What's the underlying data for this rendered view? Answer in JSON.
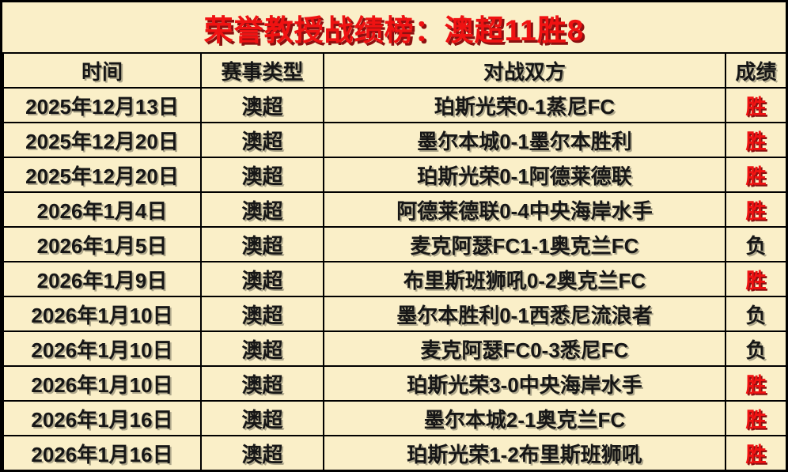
{
  "title": "荣誉教授战绩榜：澳超11胜8",
  "colors": {
    "background": "#faefc8",
    "border": "#000000",
    "accent_red": "#f01212",
    "red_shadow": "#8c1010",
    "text_black": "#161616"
  },
  "table": {
    "headers": [
      "时间",
      "赛事类型",
      "对战双方",
      "成绩"
    ],
    "rows": [
      {
        "date": "2025年12月13日",
        "league": "澳超",
        "match": "珀斯光荣0-1蒸尼FC",
        "result": "胜",
        "result_type": "win"
      },
      {
        "date": "2025年12月20日",
        "league": "澳超",
        "match": "墨尔本城0-1墨尔本胜利",
        "result": "胜",
        "result_type": "win"
      },
      {
        "date": "2025年12月20日",
        "league": "澳超",
        "match": "珀斯光荣0-1阿德莱德联",
        "result": "胜",
        "result_type": "win"
      },
      {
        "date": "2026年1月4日",
        "league": "澳超",
        "match": "阿德莱德联0-4中央海岸水手",
        "result": "胜",
        "result_type": "win"
      },
      {
        "date": "2026年1月5日",
        "league": "澳超",
        "match": "麦克阿瑟FC1-1奥克兰FC",
        "result": "负",
        "result_type": "loss"
      },
      {
        "date": "2026年1月9日",
        "league": "澳超",
        "match": "布里斯班狮吼0-2奥克兰FC",
        "result": "胜",
        "result_type": "win"
      },
      {
        "date": "2026年1月10日",
        "league": "澳超",
        "match": "墨尔本胜利0-1西悉尼流浪者",
        "result": "负",
        "result_type": "loss"
      },
      {
        "date": "2026年1月10日",
        "league": "澳超",
        "match": "麦克阿瑟FC0-3悉尼FC",
        "result": "负",
        "result_type": "loss"
      },
      {
        "date": "2026年1月10日",
        "league": "澳超",
        "match": "珀斯光荣3-0中央海岸水手",
        "result": "胜",
        "result_type": "win"
      },
      {
        "date": "2026年1月16日",
        "league": "澳超",
        "match": "墨尔本城2-1奥克兰FC",
        "result": "胜",
        "result_type": "win"
      },
      {
        "date": "2026年1月16日",
        "league": "澳超",
        "match": "珀斯光荣1-2布里斯班狮吼",
        "result": "胜",
        "result_type": "win"
      }
    ]
  },
  "chart_data": {
    "type": "table",
    "title": "荣誉教授战绩榜：澳超11胜8",
    "columns": [
      "时间",
      "赛事类型",
      "对战双方",
      "成绩"
    ],
    "rows": [
      [
        "2025年12月13日",
        "澳超",
        "珀斯光荣0-1蒸尼FC",
        "胜"
      ],
      [
        "2025年12月20日",
        "澳超",
        "墨尔本城0-1墨尔本胜利",
        "胜"
      ],
      [
        "2025年12月20日",
        "澳超",
        "珀斯光荣0-1阿德莱德联",
        "胜"
      ],
      [
        "2026年1月4日",
        "澳超",
        "阿德莱德联0-4中央海岸水手",
        "胜"
      ],
      [
        "2026年1月5日",
        "澳超",
        "麦克阿瑟FC1-1奥克兰FC",
        "负"
      ],
      [
        "2026年1月9日",
        "澳超",
        "布里斯班狮吼0-2奥克兰FC",
        "胜"
      ],
      [
        "2026年1月10日",
        "澳超",
        "墨尔本胜利0-1西悉尼流浪者",
        "负"
      ],
      [
        "2026年1月10日",
        "澳超",
        "麦克阿瑟FC0-3悉尼FC",
        "负"
      ],
      [
        "2026年1月10日",
        "澳超",
        "珀斯光荣3-0中央海岸水手",
        "胜"
      ],
      [
        "2026年1月16日",
        "澳超",
        "墨尔本城2-1奥克兰FC",
        "胜"
      ],
      [
        "2026年1月16日",
        "澳超",
        "珀斯光荣1-2布里斯班狮吼",
        "胜"
      ]
    ],
    "summary": {
      "total_matches": 11,
      "wins": 8,
      "losses": 3
    }
  }
}
